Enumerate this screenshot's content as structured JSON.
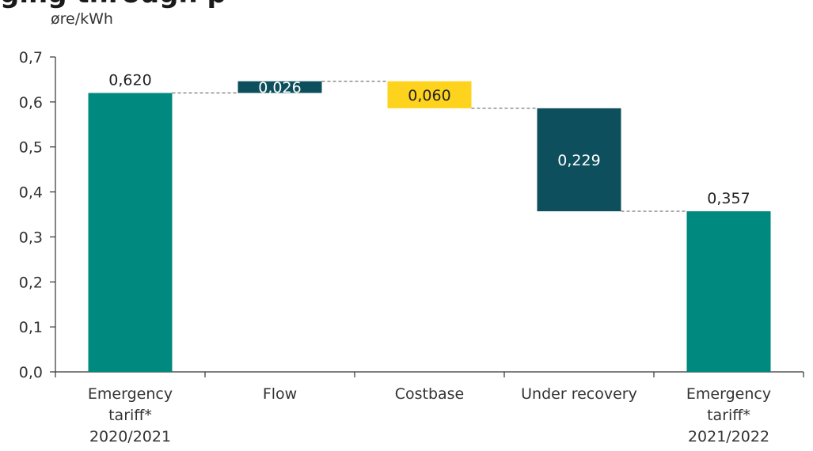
{
  "header": {
    "title_fragment": "ging through p"
  },
  "chart_data": {
    "type": "bar",
    "subtype": "waterfall",
    "unit_label": "øre/kWh",
    "ylim": [
      0,
      0.7
    ],
    "y_ticks": [
      "0,0",
      "0,1",
      "0,2",
      "0,3",
      "0,4",
      "0,5",
      "0,6",
      "0,7"
    ],
    "y_tick_values": [
      0,
      0.1,
      0.2,
      0.3,
      0.4,
      0.5,
      0.6,
      0.7
    ],
    "grid": false,
    "categories": [
      [
        "Emergency",
        "tariff*",
        "2020/2021"
      ],
      [
        "Flow"
      ],
      [
        "Costbase"
      ],
      [
        "Under recovery"
      ],
      [
        "Emergency",
        "tariff*",
        "2021/2022"
      ]
    ],
    "bars": [
      {
        "start": 0,
        "end": 0.62,
        "label": "0,620",
        "kind": "total",
        "color": "#00897f",
        "label_position": "above"
      },
      {
        "start": 0.62,
        "end": 0.646,
        "label": "0,026",
        "kind": "increase",
        "color": "#0d4f5c",
        "label_position": "inside"
      },
      {
        "start": 0.646,
        "end": 0.586,
        "label": "0,060",
        "kind": "decrease",
        "color": "#fdd31d",
        "label_position": "inside"
      },
      {
        "start": 0.586,
        "end": 0.357,
        "label": "0,229",
        "kind": "decrease",
        "color": "#0d4f5c",
        "label_position": "inside"
      },
      {
        "start": 0,
        "end": 0.357,
        "label": "0,357",
        "kind": "total",
        "color": "#00897f",
        "label_position": "above"
      }
    ]
  }
}
